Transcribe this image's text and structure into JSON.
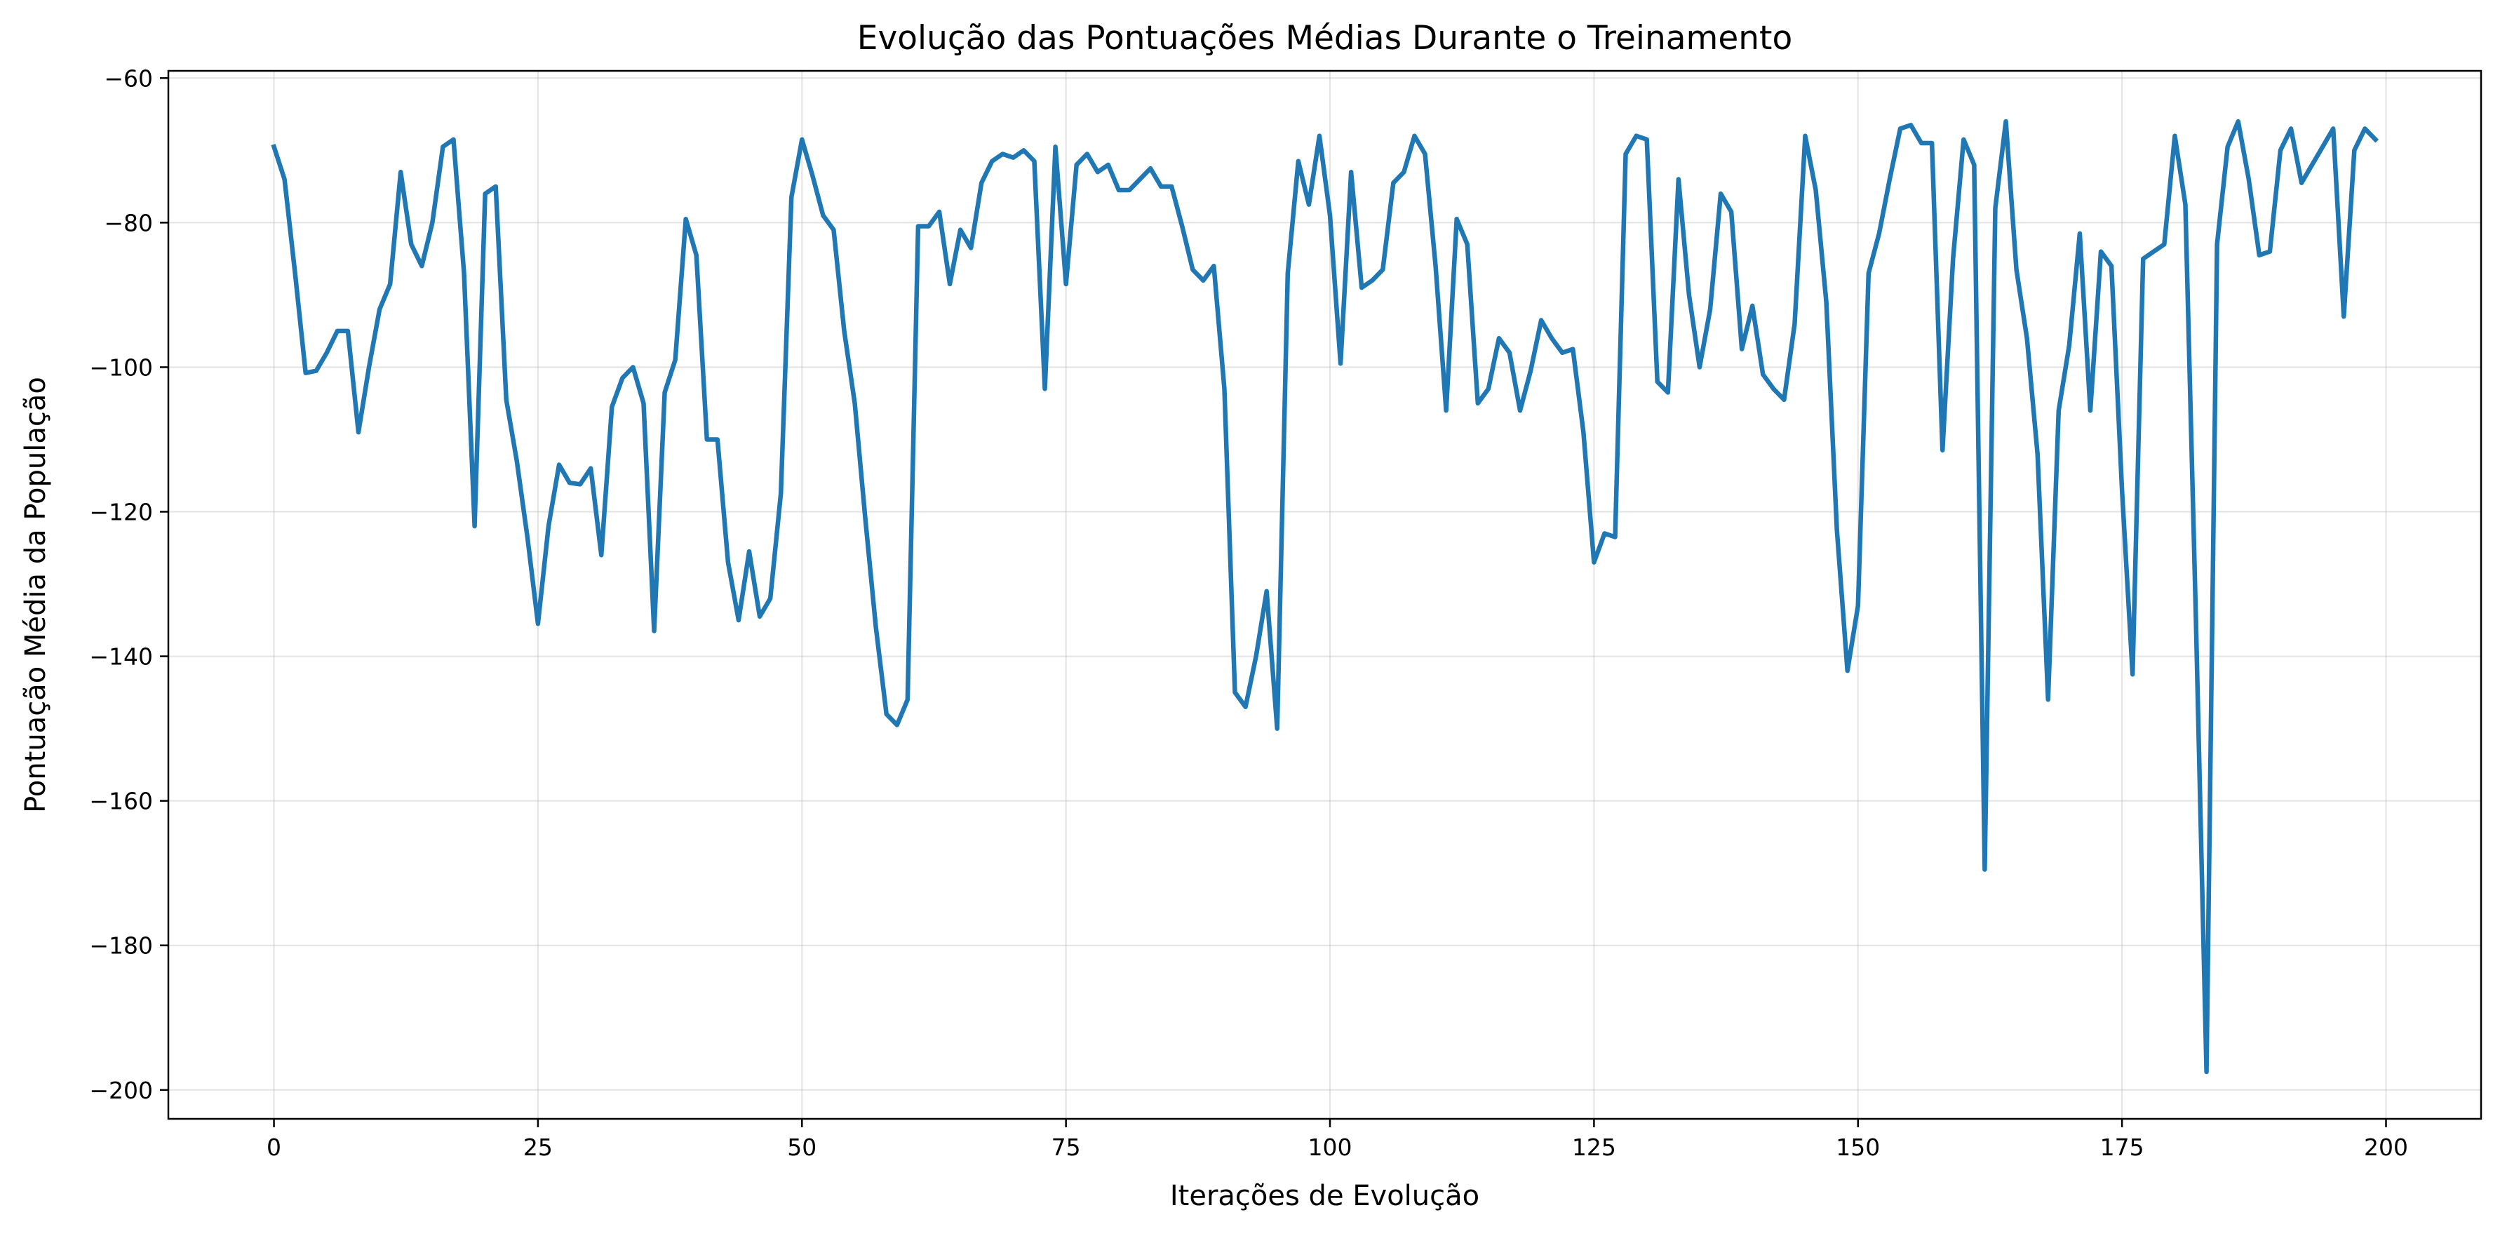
{
  "chart_data": {
    "type": "line",
    "title": "Evolução das Pontuações Médias Durante o Treinamento",
    "xlabel": "Iterações de Evolução",
    "ylabel": "Pontuação Média da População",
    "xlim": [
      -10,
      209
    ],
    "ylim": [
      -204,
      -59
    ],
    "xticks": [
      0,
      25,
      50,
      75,
      100,
      125,
      150,
      175,
      200
    ],
    "xtick_labels": [
      "0",
      "25",
      "50",
      "75",
      "100",
      "125",
      "150",
      "175",
      "200"
    ],
    "yticks": [
      -60,
      -80,
      -100,
      -120,
      -140,
      -160,
      -180,
      -200
    ],
    "ytick_labels": [
      "−60",
      "−80",
      "−100",
      "−120",
      "−140",
      "−160",
      "−180",
      "−200"
    ],
    "grid": true,
    "line_color": "#1f77b4",
    "series": [
      {
        "x": [
          0,
          1,
          2,
          3,
          4,
          5,
          6,
          7,
          8,
          9,
          10,
          11,
          12,
          13,
          14,
          15,
          16,
          17,
          18,
          19,
          20,
          21,
          22,
          23,
          24,
          25,
          26,
          27,
          28,
          29,
          30,
          31,
          32,
          33,
          34,
          35,
          36,
          37,
          38,
          39,
          40,
          41,
          42,
          43,
          44,
          45,
          46,
          47,
          48,
          49,
          50,
          51,
          52,
          53,
          54,
          55,
          56,
          57,
          58,
          59,
          60,
          61,
          62,
          63,
          64,
          65,
          66,
          67,
          68,
          69,
          70,
          71,
          72,
          73,
          74,
          75,
          76,
          77,
          78,
          79,
          80,
          81,
          82,
          83,
          84,
          85,
          86,
          87,
          88,
          89,
          90,
          91,
          92,
          93,
          94,
          95,
          96,
          97,
          98,
          99,
          100,
          101,
          102,
          103,
          104,
          105,
          106,
          107,
          108,
          109,
          110,
          111,
          112,
          113,
          114,
          115,
          116,
          117,
          118,
          119,
          120,
          121,
          122,
          123,
          124,
          125,
          126,
          127,
          128,
          129,
          130,
          131,
          132,
          133,
          134,
          135,
          136,
          137,
          138,
          139,
          140,
          141,
          142,
          143,
          144,
          145,
          146,
          147,
          148,
          149,
          150,
          151,
          152,
          153,
          154,
          155,
          156,
          157,
          158,
          159,
          160,
          161,
          162,
          163,
          164,
          165,
          166,
          167,
          168,
          169,
          170,
          171,
          172,
          173,
          174,
          175,
          176,
          177,
          178,
          179,
          180,
          181,
          182,
          183,
          184,
          185,
          186,
          187,
          188,
          189,
          190,
          191,
          192,
          193,
          194,
          195,
          196,
          197,
          198,
          199
        ],
        "values": [
          -69.5,
          -74,
          -87,
          -100.8,
          -100.5,
          -98,
          -95,
          -95,
          -109,
          -100,
          -92,
          -88.5,
          -73,
          -83,
          -86,
          -80,
          -69.5,
          -68.5,
          -87,
          -122,
          -76,
          -75,
          -104.5,
          -113,
          -123.5,
          -135.5,
          -122,
          -113.5,
          -116,
          -116.2,
          -114,
          -126,
          -105.5,
          -101.5,
          -100,
          -105,
          -136.5,
          -103.5,
          -99,
          -79.5,
          -84.5,
          -110,
          -110,
          -127,
          -135,
          -125.5,
          -134.5,
          -132,
          -117.5,
          -76.5,
          -68.5,
          -73.5,
          -79,
          -81,
          -95,
          -105,
          -121,
          -136,
          -148,
          -149.5,
          -146,
          -80.5,
          -80.5,
          -78.5,
          -88.5,
          -81,
          -83.5,
          -74.5,
          -71.5,
          -70.5,
          -71,
          -70,
          -71.5,
          -103,
          -69.5,
          -88.5,
          -72,
          -70.5,
          -73,
          -72,
          -75.5,
          -75.5,
          -74,
          -72.5,
          -75,
          -75,
          -80.5,
          -86.5,
          -88,
          -86,
          -103,
          -145,
          -147,
          -140,
          -131,
          -150,
          -87,
          -71.5,
          -77.5,
          -68,
          -79,
          -99.5,
          -73,
          -89,
          -88,
          -86.5,
          -74.5,
          -73,
          -68,
          -70.5,
          -86,
          -106,
          -79.5,
          -83,
          -105,
          -103,
          -96,
          -98,
          -106,
          -100.5,
          -93.5,
          -96,
          -98,
          -97.5,
          -109,
          -127,
          -123,
          -123.5,
          -70.5,
          -68,
          -68.5,
          -102,
          -103.5,
          -74,
          -90,
          -100,
          -92,
          -76,
          -78.5,
          -97.5,
          -91.5,
          -101,
          -103,
          -104.5,
          -94,
          -68,
          -75.5,
          -91,
          -122.5,
          -142,
          -133,
          -87,
          -81.5,
          -74,
          -67,
          -66.5,
          -69,
          -69,
          -111.5,
          -85,
          -68.5,
          -72,
          -169.5,
          -78,
          -66,
          -86.5,
          -96,
          -112,
          -146,
          -106,
          -97,
          -81.5,
          -106,
          -84,
          -86,
          -117,
          -142.5,
          -85,
          -84,
          -83,
          -68,
          -77.5,
          -135,
          -197.5,
          -83,
          -69.5,
          -66,
          -74,
          -84.5,
          -84,
          -70,
          -67,
          -74.5,
          -72,
          -69.5,
          -67,
          -93,
          -70,
          -67,
          -68.5
        ]
      }
    ]
  }
}
